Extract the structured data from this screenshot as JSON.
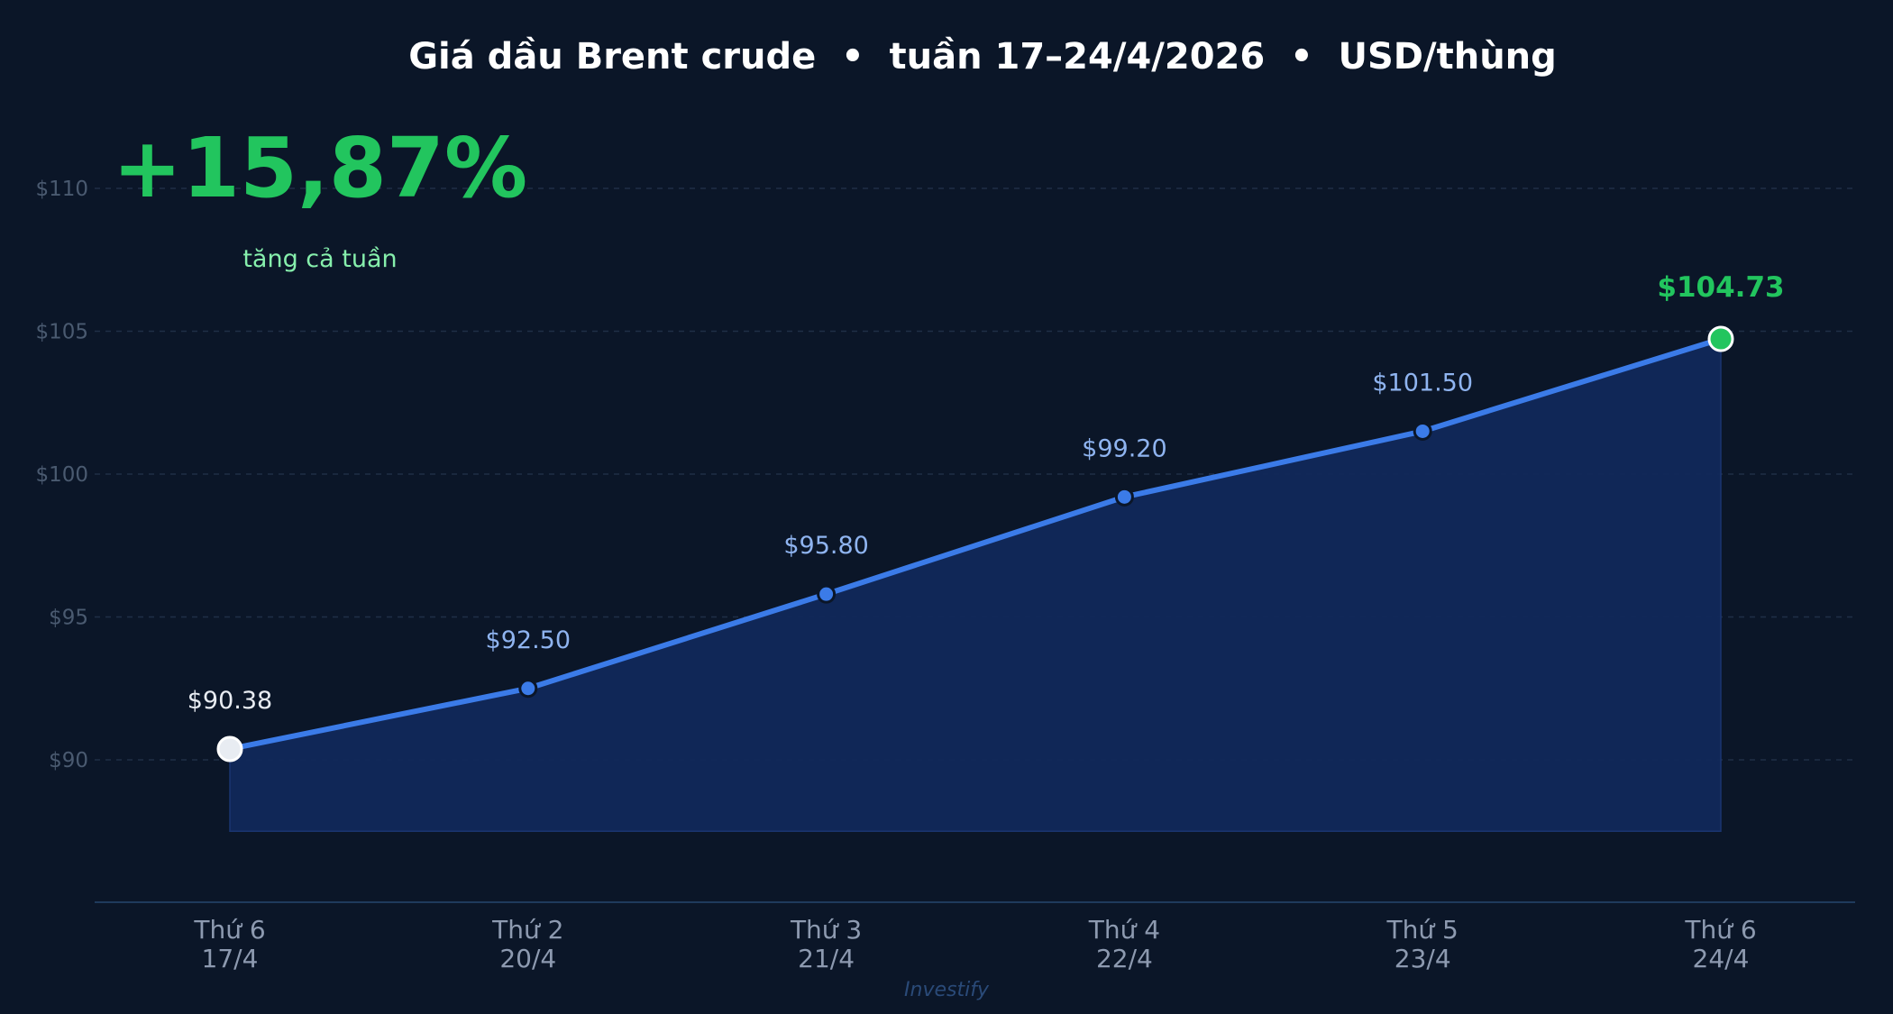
{
  "chart_data": {
    "type": "area",
    "title": "Giá dầu Brent crude  •  tuần 17–24/4/2026  •  USD/thùng",
    "categories": [
      [
        "Thứ 6",
        "17/4"
      ],
      [
        "Thứ 2",
        "20/4"
      ],
      [
        "Thứ 3",
        "21/4"
      ],
      [
        "Thứ 4",
        "22/4"
      ],
      [
        "Thứ 5",
        "23/4"
      ],
      [
        "Thứ 6",
        "24/4"
      ]
    ],
    "values": [
      90.38,
      92.5,
      95.8,
      99.2,
      101.5,
      104.73
    ],
    "data_labels": [
      "$90.38",
      "$92.50",
      "$95.80",
      "$99.20",
      "$101.50",
      "$104.73"
    ],
    "y_ticks": [
      {
        "value": 90,
        "label": "$90"
      },
      {
        "value": 95,
        "label": "$95"
      },
      {
        "value": 100,
        "label": "$100"
      },
      {
        "value": 105,
        "label": "$105"
      },
      {
        "value": 110,
        "label": "$110"
      }
    ],
    "ylim": [
      85,
      115
    ],
    "area_floor": 87.5,
    "grid": true,
    "xlabel": "",
    "ylabel": "",
    "colors": {
      "background": "#0b1628",
      "line": "#3b7be8",
      "area": "#11285a",
      "start_point": "#e8ecf2",
      "end_point": "#22c55e",
      "highlight": "#22c55e"
    }
  },
  "callout": {
    "value": "+15,87%",
    "caption": "tăng cả tuần"
  },
  "watermark": "Investify"
}
